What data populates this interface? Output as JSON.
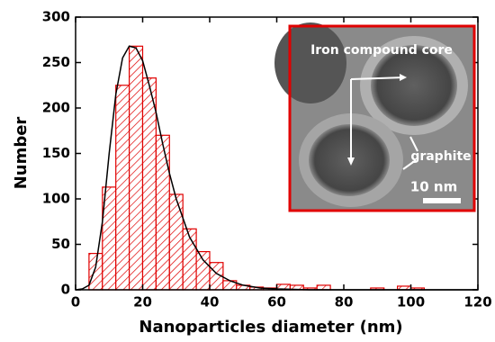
{
  "chart_data": {
    "type": "histogram",
    "xlabel": "Nanoparticles diameter (nm)",
    "ylabel": "Number",
    "bins": [
      4,
      8,
      12,
      16,
      20,
      24,
      28,
      32,
      36,
      40,
      44,
      48,
      52,
      56,
      60,
      64,
      68,
      72,
      76,
      80,
      84,
      88,
      92,
      96,
      100,
      104,
      108,
      112,
      116,
      120
    ],
    "counts": [
      40,
      113,
      225,
      268,
      233,
      170,
      105,
      67,
      42,
      30,
      10,
      5,
      3,
      2,
      6,
      5,
      2,
      5,
      0,
      0,
      0,
      2,
      0,
      4,
      2,
      0,
      0,
      0,
      0
    ],
    "color": "#e00000",
    "fit": {
      "color": "#000000",
      "x": [
        0,
        2,
        4,
        6,
        8,
        10,
        12,
        14,
        16,
        18,
        20,
        22,
        24,
        26,
        28,
        30,
        34,
        38,
        42,
        46,
        50,
        55,
        60,
        70,
        80,
        100,
        120
      ],
      "y": [
        0,
        1,
        5,
        25,
        75,
        150,
        215,
        255,
        268,
        266,
        252,
        225,
        195,
        160,
        128,
        100,
        58,
        33,
        18,
        10,
        5,
        2,
        1,
        0,
        0,
        0,
        0
      ]
    },
    "xlim": [
      0,
      120
    ],
    "xticks": [
      0,
      20,
      40,
      60,
      80,
      100,
      120
    ],
    "ylim": [
      0,
      300
    ],
    "yticks": [
      0,
      50,
      100,
      150,
      200,
      250,
      300
    ],
    "inset": {
      "labels": [
        "Iron compound core",
        "graphite",
        "10 nm"
      ],
      "border_color": "#e00000"
    }
  }
}
